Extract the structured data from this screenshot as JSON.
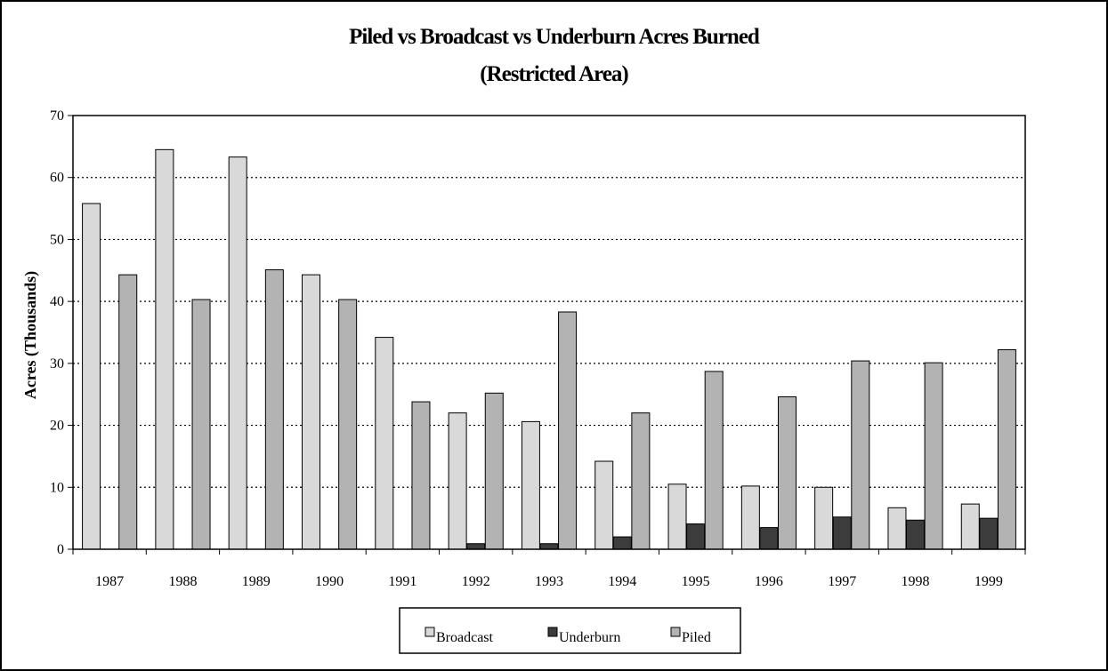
{
  "chart_data": {
    "type": "bar",
    "title": "Piled vs Broadcast vs Underburn Acres Burned",
    "subtitle": "(Restricted Area)",
    "xlabel": "",
    "ylabel": "Acres (Thousands)",
    "ylim": [
      0,
      70
    ],
    "yticks": [
      0,
      10,
      20,
      30,
      40,
      50,
      60,
      70
    ],
    "grid": true,
    "legend_position": "bottom",
    "categories": [
      "1987",
      "1988",
      "1989",
      "1990",
      "1991",
      "1992",
      "1993",
      "1994",
      "1995",
      "1996",
      "1997",
      "1998",
      "1999"
    ],
    "series": [
      {
        "name": "Broadcast",
        "color": "#d9d9d9",
        "values": [
          55.8,
          64.5,
          63.3,
          44.3,
          34.2,
          22.0,
          20.6,
          14.2,
          10.5,
          10.2,
          10.0,
          6.7,
          7.3
        ]
      },
      {
        "name": "Underburn",
        "color": "#3c3c3c",
        "values": [
          0,
          0,
          0,
          0,
          0,
          0.9,
          0.9,
          2.0,
          4.1,
          3.5,
          5.2,
          4.7,
          5.0
        ]
      },
      {
        "name": "Piled",
        "color": "#b3b3b3",
        "values": [
          44.3,
          40.3,
          45.1,
          40.3,
          23.8,
          25.2,
          38.3,
          22.0,
          28.7,
          24.6,
          30.4,
          30.1,
          32.2
        ]
      }
    ]
  }
}
